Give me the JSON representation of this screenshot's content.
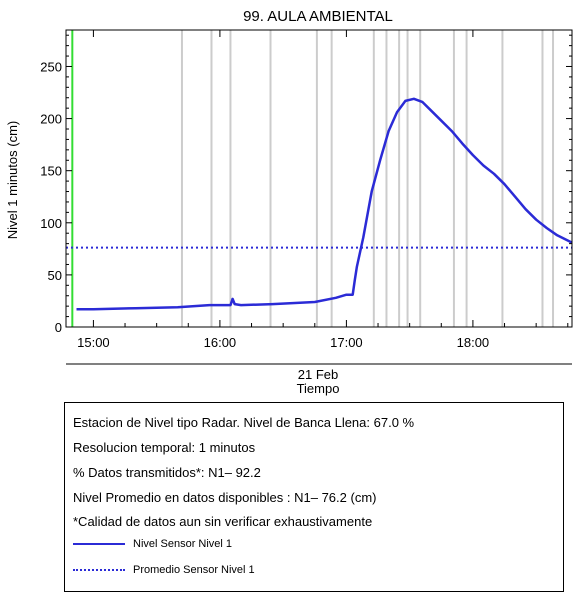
{
  "chart_data": {
    "type": "line",
    "title": "99. AULA AMBIENTAL",
    "ylabel": "Nivel 1 minutos (cm)",
    "xlabel_date": "21 Feb",
    "xlabel": "Tiempo",
    "x_unit": "hour of day",
    "xlim": [
      "14:47",
      "18:47"
    ],
    "ylim": [
      0,
      285
    ],
    "y_ticks": [
      0,
      50,
      100,
      150,
      200,
      250
    ],
    "x_ticks": [
      "15:00",
      "16:00",
      "17:00",
      "18:00"
    ],
    "series": [
      {
        "name": "Nivel Sensor Nivel 1",
        "style": "solid",
        "color": "#2b2bd6",
        "x": [
          "14:52",
          "15:00",
          "15:20",
          "15:40",
          "15:55",
          "16:05",
          "16:06",
          "16:07",
          "16:10",
          "16:25",
          "16:45",
          "16:55",
          "17:00",
          "17:03",
          "17:04",
          "17:05",
          "17:08",
          "17:12",
          "17:16",
          "17:20",
          "17:24",
          "17:28",
          "17:32",
          "17:36",
          "17:40",
          "17:45",
          "17:50",
          "17:55",
          "18:00",
          "18:05",
          "18:10",
          "18:15",
          "18:20",
          "18:25",
          "18:30",
          "18:35",
          "18:40",
          "18:47"
        ],
        "y": [
          17,
          17,
          18,
          19,
          21,
          21,
          27,
          22,
          21,
          22,
          24,
          28,
          31,
          31,
          45,
          58,
          86,
          130,
          160,
          188,
          206,
          217,
          219,
          216,
          208,
          198,
          188,
          176,
          165,
          155,
          147,
          137,
          125,
          113,
          103,
          95,
          88,
          81
        ]
      },
      {
        "name": "Promedio Sensor Nivel 1",
        "style": "dotted",
        "color": "#2b2bd6",
        "x": [
          "14:47",
          "18:47"
        ],
        "y": [
          76.2,
          76.2
        ]
      }
    ],
    "markers": [
      {
        "type": "vertical_line",
        "color": "#33dd33",
        "x": "14:50"
      },
      {
        "type": "vertical_lines",
        "color": "#cccccc",
        "x": [
          "15:42",
          "15:56",
          "16:05",
          "16:24",
          "16:46",
          "16:53",
          "17:13",
          "17:19",
          "17:25",
          "17:29",
          "17:35",
          "17:51",
          "17:57",
          "18:14",
          "18:33",
          "18:38"
        ]
      }
    ]
  },
  "info": {
    "lines": [
      "Estacion de Nivel tipo Radar. Nivel de Banca Llena: 67.0 %",
      "Resolucion temporal: 1 minutos",
      "% Datos transmitidos*: N1– 92.2",
      "Nivel Promedio en datos disponibles : N1– 76.2 (cm)",
      "*Calidad de datos aun sin verificar exhaustivamente"
    ],
    "legend": [
      {
        "label": "Nivel Sensor Nivel 1",
        "style": "solid"
      },
      {
        "label": "Promedio Sensor Nivel 1",
        "style": "dotted"
      }
    ]
  }
}
